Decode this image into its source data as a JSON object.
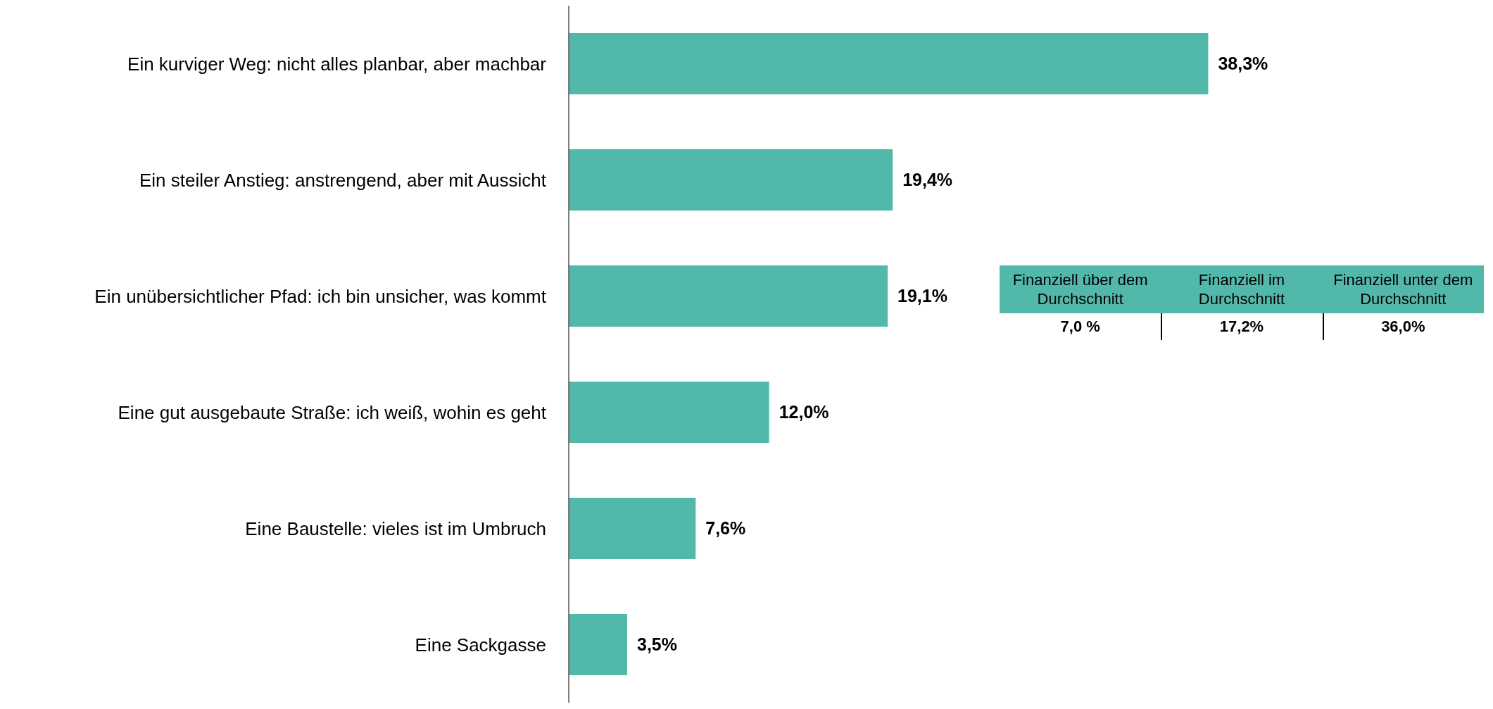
{
  "chart_data": {
    "type": "bar",
    "orientation": "horizontal",
    "categories": [
      "Ein kurviger Weg: nicht alles planbar, aber machbar",
      "Ein steiler Anstieg: anstrengend, aber mit Aussicht",
      "Ein unübersichtlicher Pfad: ich bin unsicher, was kommt",
      "Eine gut ausgebaute Straße: ich weiß, wohin es geht",
      "Eine Baustelle: vieles ist im Umbruch",
      "Eine Sackgasse"
    ],
    "values": [
      38.3,
      19.4,
      19.1,
      12.0,
      7.6,
      3.5
    ],
    "value_labels": [
      "38,3%",
      "19,4%",
      "19,1%",
      "12,0%",
      "7,6%",
      "3,5%"
    ],
    "color": "#52b9aa",
    "annotations": [
      "Finanziell über dem Durchschnitt",
      "7,0 %",
      "Finanziell im Durchschnitt",
      "17,2%",
      "Finanziell unter dem Durchschnitt",
      "36,0%"
    ]
  }
}
